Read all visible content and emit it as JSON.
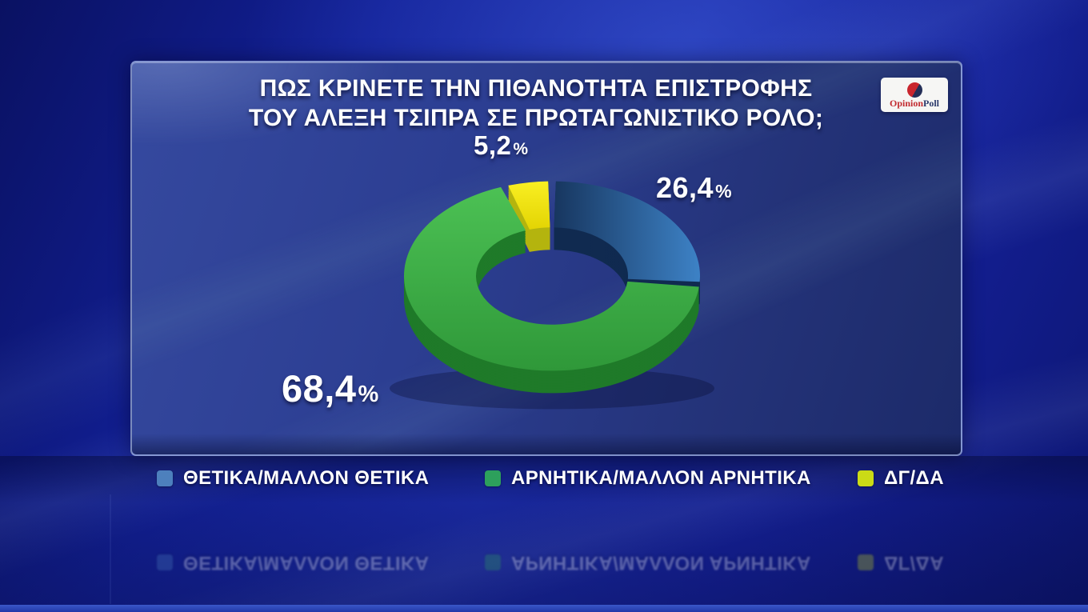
{
  "title": {
    "line1": "ΠΩΣ ΚΡΙΝΕΤΕ ΤΗΝ ΠΙΘΑΝΟΤΗΤΑ ΕΠΙΣΤΡΟΦΗΣ",
    "line2": "ΤΟΥ ΑΛΕΞΗ ΤΣΙΠΡΑ ΣΕ ΠΡΩΤΑΓΩΝΙΣΤΙΚΟ ΡΟΛΟ;"
  },
  "logo": {
    "text_primary": "Opinion",
    "text_secondary": "Poll"
  },
  "percent_symbol": "%",
  "chart_data": {
    "type": "pie",
    "subtype": "3d-donut",
    "title": "ΠΩΣ ΚΡΙΝΕΤΕ ΤΗΝ ΠΙΘΑΝΟΤΗΤΑ ΕΠΙΣΤΡΟΦΗΣ ΤΟΥ ΑΛΕΞΗ ΤΣΙΠΡΑ ΣΕ ΠΡΩΤΑΓΩΝΙΣΤΙΚΟ ΡΟΛΟ;",
    "legend_position": "bottom",
    "start_angle_deg": 0,
    "slices": [
      {
        "label": "ΘΕΤΙΚΑ/ΜΑΛΛΟΝ ΘΕΤΙΚΑ",
        "value": 26.4,
        "display": "26,4",
        "color": "#2e6fb2",
        "color_from": "#17365f",
        "color_to": "#3d82c6",
        "grad_dir": "h",
        "side_color": "#102a50",
        "legend_color": "#4d80bd"
      },
      {
        "label": "ΑΡΝΗΤΙΚΑ/ΜΑΛΛΟΝ ΑΡΝΗΤΙΚΑ",
        "value": 68.4,
        "display": "68,4",
        "color": "#3bae45",
        "color_from": "#4cc154",
        "color_to": "#2f9839",
        "grad_dir": "v",
        "side_color": "#1f7a29",
        "legend_color": "#2da05c"
      },
      {
        "label": "ΔΓ/ΔΑ",
        "value": 5.2,
        "display": "5,2",
        "color": "#f4e606",
        "color_from": "#f9ef22",
        "color_to": "#e3d404",
        "grad_dir": "v",
        "side_color": "#b4b40e",
        "legend_color": "#cbdb16"
      }
    ]
  }
}
